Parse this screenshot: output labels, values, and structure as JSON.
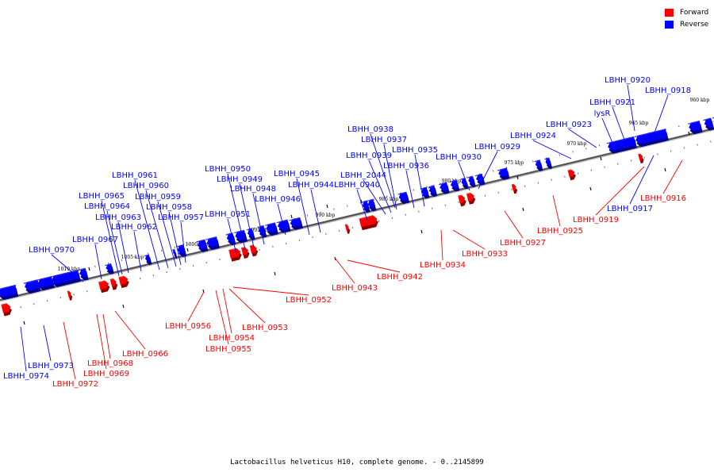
{
  "caption": "Lactobacillus helveticus H10, complete genome. - 0..2145899",
  "legend": [
    {
      "label": "Forward",
      "color": "#ff0000"
    },
    {
      "label": "Reverse",
      "color": "#0000ff"
    }
  ],
  "scale_labels": [
    "960 kbp",
    "965 kbp",
    "970 kbp",
    "975 kbp",
    "980 kbp",
    "985 kbp",
    "990 kbp",
    "995 kbp",
    "1000 kbp",
    "1005 kbp",
    "1010 kbp"
  ],
  "forward_genes": [
    "LBHH_0916",
    "LBHH_0919",
    "LBHH_0925",
    "LBHH_0927",
    "LBHH_0933",
    "LBHH_0934",
    "LBHH_0942",
    "LBHH_0943",
    "LBHH_0952",
    "LBHH_0953",
    "LBHH_0954",
    "LBHH_0955",
    "LBHH_0956",
    "LBHH_0966",
    "LBHH_0968",
    "LBHH_0969",
    "LBHH_0972"
  ],
  "reverse_genes": [
    "LBHH_0920",
    "LBHH_0918",
    "LBHH_0921",
    "lysR",
    "LBHH_0923",
    "LBHH_0924",
    "LBHH_0917",
    "LBHH_0938",
    "LBHH_0937",
    "LBHH_0939",
    "LBHH_0935",
    "LBHH_0936",
    "LBHH_0930",
    "LBHH_0929",
    "LBHH_2044",
    "LBHH_0940",
    "LBHH_0945",
    "LBHH_0944",
    "LBHH_0950",
    "LBHH_0949",
    "LBHH_0948",
    "LBHH_0946",
    "LBHH_0951",
    "LBHH_0961",
    "LBHH_0960",
    "LBHH_0965",
    "LBHH_0959",
    "LBHH_0964",
    "LBHH_0958",
    "LBHH_0963",
    "LBHH_0957",
    "LBHH_0962",
    "LBHH_0967",
    "LBHH_0970",
    "LBHH_0973",
    "LBHH_0974"
  ]
}
